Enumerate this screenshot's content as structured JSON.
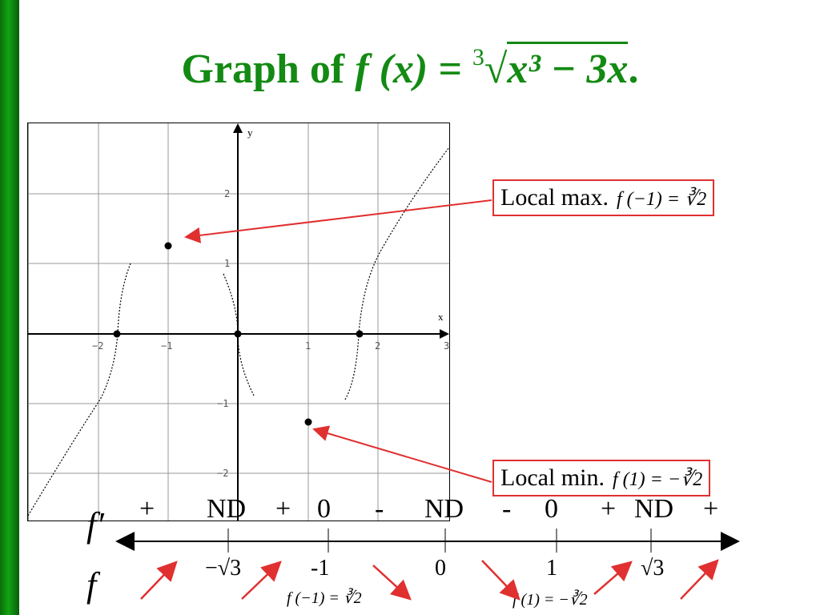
{
  "title": {
    "text": "Graph of",
    "func": "f (x) = ",
    "index": "3",
    "radicand": "x³ − 3x",
    "end": "."
  },
  "graph": {
    "axis_x": "x",
    "axis_y": "y",
    "x_ticks": [
      "−2",
      "−1",
      "1",
      "2",
      "3"
    ],
    "y_ticks": [
      "2",
      "1",
      "−1",
      "−2"
    ]
  },
  "callouts": {
    "max": {
      "label": "Local max.",
      "math": "f (−1) = ∛2"
    },
    "min": {
      "label": "Local min.",
      "math": "f (1) = −∛2"
    }
  },
  "sign_chart": {
    "fprime_label": "f′",
    "f_label": "f",
    "signs": [
      "+",
      "ND",
      "+",
      "0",
      "-",
      "ND",
      "-",
      "0",
      "+",
      "ND",
      "+"
    ],
    "points": [
      "−√3",
      "-1",
      "0",
      "1",
      "√3"
    ],
    "f_values": [
      "f (−1) = ∛2",
      "f (1) = −∛2"
    ]
  },
  "colors": {
    "title": "#138a13",
    "sidebar": "#13a313",
    "accent_red": "#e03030"
  }
}
